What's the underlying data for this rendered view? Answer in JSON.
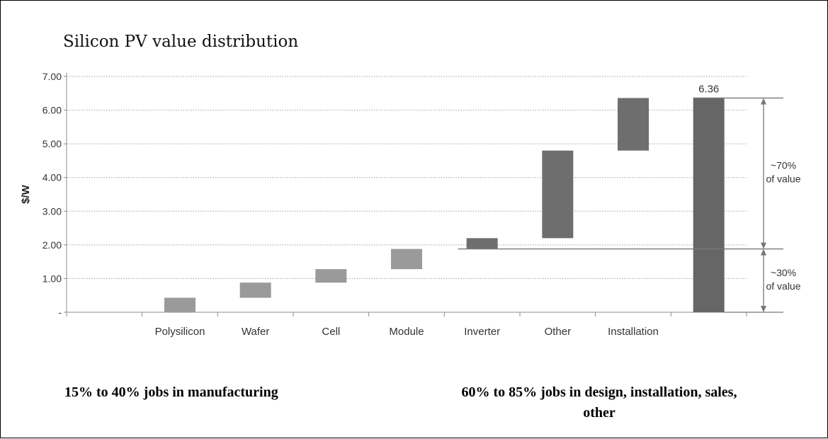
{
  "chart_data": {
    "type": "bar",
    "subtype": "waterfall",
    "title": "Silicon PV value distribution",
    "ylabel": "$/W",
    "xlabel": "",
    "ylim": [
      0,
      7
    ],
    "yticks": [
      {
        "value": 0,
        "label": "-"
      },
      {
        "value": 1,
        "label": "1.00"
      },
      {
        "value": 2,
        "label": "2.00"
      },
      {
        "value": 3,
        "label": "3.00"
      },
      {
        "value": 4,
        "label": "4.00"
      },
      {
        "value": 5,
        "label": "5.00"
      },
      {
        "value": 6,
        "label": "6.00"
      },
      {
        "value": 7,
        "label": "7.00"
      }
    ],
    "grid": "horizontal dotted",
    "categories": [
      "",
      "Polysilicon",
      "Wafer",
      "Cell",
      "Module",
      "Inverter",
      "Other",
      "Installation",
      ""
    ],
    "steps": [
      {
        "category": "Polysilicon",
        "start": 0.0,
        "end": 0.43
      },
      {
        "category": "Wafer",
        "start": 0.43,
        "end": 0.88
      },
      {
        "category": "Cell",
        "start": 0.88,
        "end": 1.28
      },
      {
        "category": "Module",
        "start": 1.28,
        "end": 1.88
      },
      {
        "category": "Inverter",
        "start": 1.88,
        "end": 2.2
      },
      {
        "category": "Other",
        "start": 2.2,
        "end": 4.8
      },
      {
        "category": "Installation",
        "start": 4.8,
        "end": 6.36
      }
    ],
    "total": {
      "value": 6.36,
      "label": "6.36"
    },
    "split_value": 1.88,
    "annotations": {
      "upper": [
        "~70%",
        "of value"
      ],
      "lower": [
        "~30%",
        "of value"
      ]
    },
    "colors": {
      "manufacturing": "#9a9a9a",
      "downstream": "#6e6e6e",
      "total": "#666666",
      "grid": "#a0a0a0",
      "axis": "#8c8c8c"
    }
  },
  "captions": {
    "left": "15% to 40% jobs in manufacturing",
    "right_line1": "60% to 85% jobs in design, installation, sales,",
    "right_line2": "other"
  }
}
